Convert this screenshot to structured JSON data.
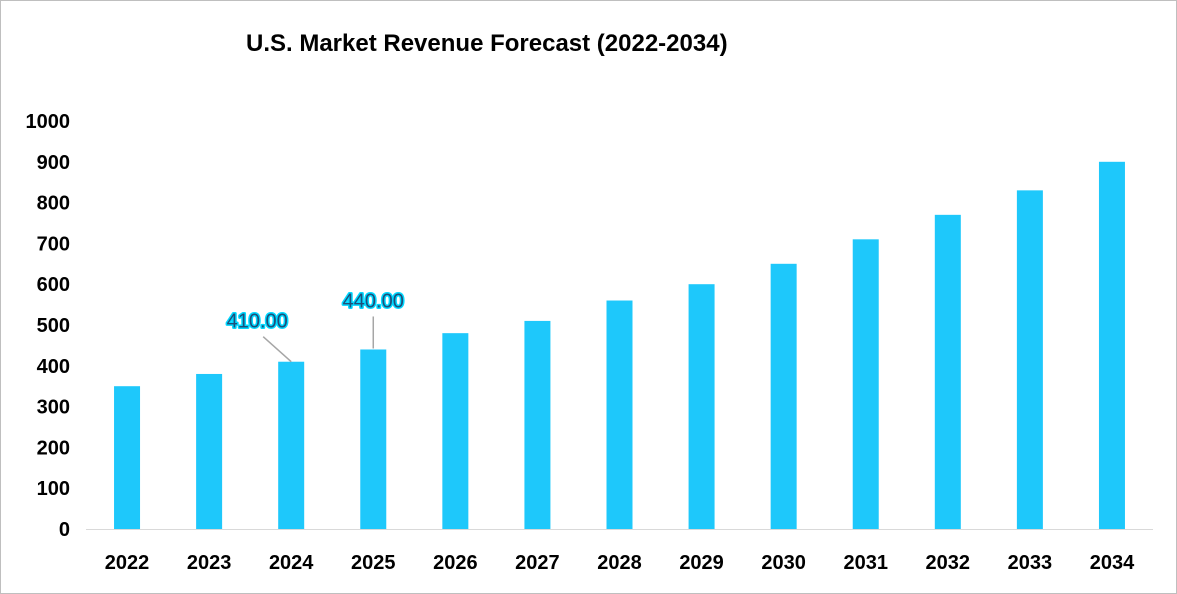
{
  "chart_data": {
    "type": "bar",
    "title": "U.S. Market Revenue Forecast (2022-2034)",
    "xlabel": "",
    "ylabel": "",
    "categories": [
      "2022",
      "2023",
      "2024",
      "2025",
      "2026",
      "2027",
      "2028",
      "2029",
      "2030",
      "2031",
      "2032",
      "2033",
      "2034"
    ],
    "values": [
      350,
      380,
      410,
      440,
      480,
      510,
      560,
      600,
      650,
      710,
      770,
      830,
      900
    ],
    "ylim": [
      0,
      1000
    ],
    "yticks": [
      "0",
      "100",
      "200",
      "300",
      "400",
      "500",
      "600",
      "700",
      "800",
      "900",
      "1000"
    ],
    "grid": false,
    "legend": "none",
    "bar_color": "#1ec8fb",
    "data_labels": [
      {
        "category": "2024",
        "text": "410.00"
      },
      {
        "category": "2025",
        "text": "440.00"
      }
    ]
  }
}
